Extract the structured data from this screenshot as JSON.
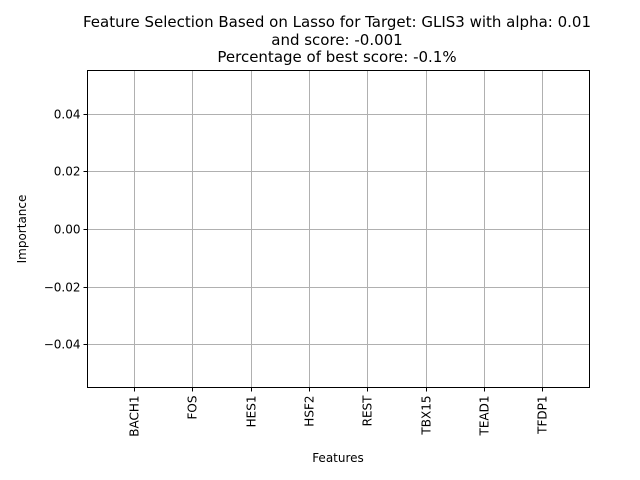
{
  "chart_data": {
    "type": "bar",
    "title_lines": [
      "Feature Selection Based on Lasso for Target: GLIS3 with alpha: 0.01",
      "and score: -0.001",
      "Percentage of best score: -0.1%"
    ],
    "xlabel": "Features",
    "ylabel": "Importance",
    "categories": [
      "BACH1",
      "FOS",
      "HES1",
      "HSF2",
      "REST",
      "TBX15",
      "TEAD1",
      "TFDP1"
    ],
    "values": [
      0,
      0,
      0,
      0,
      0,
      0,
      0,
      0
    ],
    "ylim": [
      -0.055,
      0.055
    ],
    "yticks": [
      -0.04,
      -0.02,
      0.0,
      0.02,
      0.04
    ],
    "ytick_labels": [
      "−0.04",
      "−0.02",
      "0.00",
      "0.02",
      "0.04"
    ],
    "grid": true,
    "colors": {
      "bar": "#1f77b4",
      "grid": "#b0b0b0"
    }
  }
}
